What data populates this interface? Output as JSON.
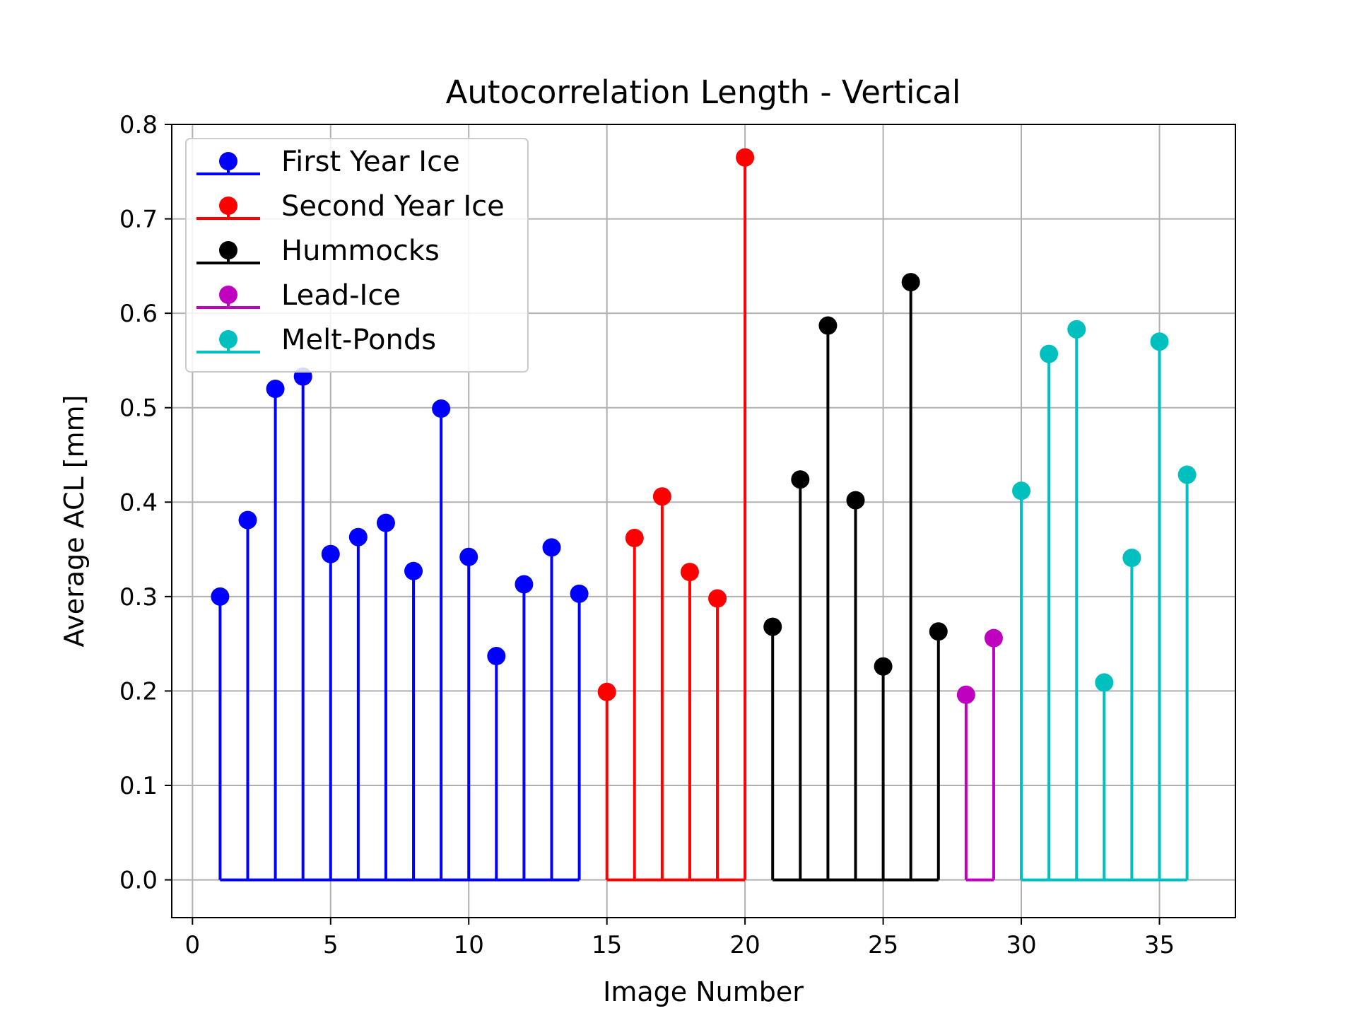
{
  "chart_data": {
    "type": "stem",
    "title": "Autocorrelation Length - Vertical",
    "xlabel": "Image Number",
    "ylabel": "Average ACL [mm]",
    "xlim": [
      -0.75,
      37.75
    ],
    "ylim": [
      -0.04,
      0.8
    ],
    "xticks": [
      0,
      5,
      10,
      15,
      20,
      25,
      30,
      35
    ],
    "xtick_labels": [
      "0",
      "5",
      "10",
      "15",
      "20",
      "25",
      "30",
      "35"
    ],
    "yticks": [
      0.0,
      0.1,
      0.2,
      0.3,
      0.4,
      0.5,
      0.6,
      0.7,
      0.8
    ],
    "ytick_labels": [
      "0.0",
      "0.1",
      "0.2",
      "0.3",
      "0.4",
      "0.5",
      "0.6",
      "0.7",
      "0.8"
    ],
    "grid": true,
    "legend_position": "top-left",
    "series": [
      {
        "name": "First Year Ice",
        "color": "#0000ff",
        "x": [
          1,
          2,
          3,
          4,
          5,
          6,
          7,
          8,
          9,
          10,
          11,
          12,
          13,
          14
        ],
        "values": [
          0.3,
          0.381,
          0.52,
          0.533,
          0.345,
          0.363,
          0.378,
          0.327,
          0.499,
          0.342,
          0.237,
          0.313,
          0.352,
          0.303
        ]
      },
      {
        "name": "Second Year Ice",
        "color": "#ff0000",
        "x": [
          15,
          16,
          17,
          18,
          19,
          20
        ],
        "values": [
          0.199,
          0.362,
          0.406,
          0.326,
          0.298,
          0.765
        ]
      },
      {
        "name": "Hummocks",
        "color": "#000000",
        "x": [
          21,
          22,
          23,
          24,
          25,
          26,
          27
        ],
        "values": [
          0.268,
          0.424,
          0.587,
          0.402,
          0.226,
          0.633,
          0.263
        ]
      },
      {
        "name": "Lead-Ice",
        "color": "#bf00bf",
        "x": [
          28,
          29
        ],
        "values": [
          0.196,
          0.256
        ]
      },
      {
        "name": "Melt-Ponds",
        "color": "#00bfbf",
        "x": [
          30,
          31,
          32,
          33,
          34,
          35,
          36
        ],
        "values": [
          0.412,
          0.557,
          0.583,
          0.209,
          0.341,
          0.57,
          0.429
        ]
      }
    ]
  }
}
